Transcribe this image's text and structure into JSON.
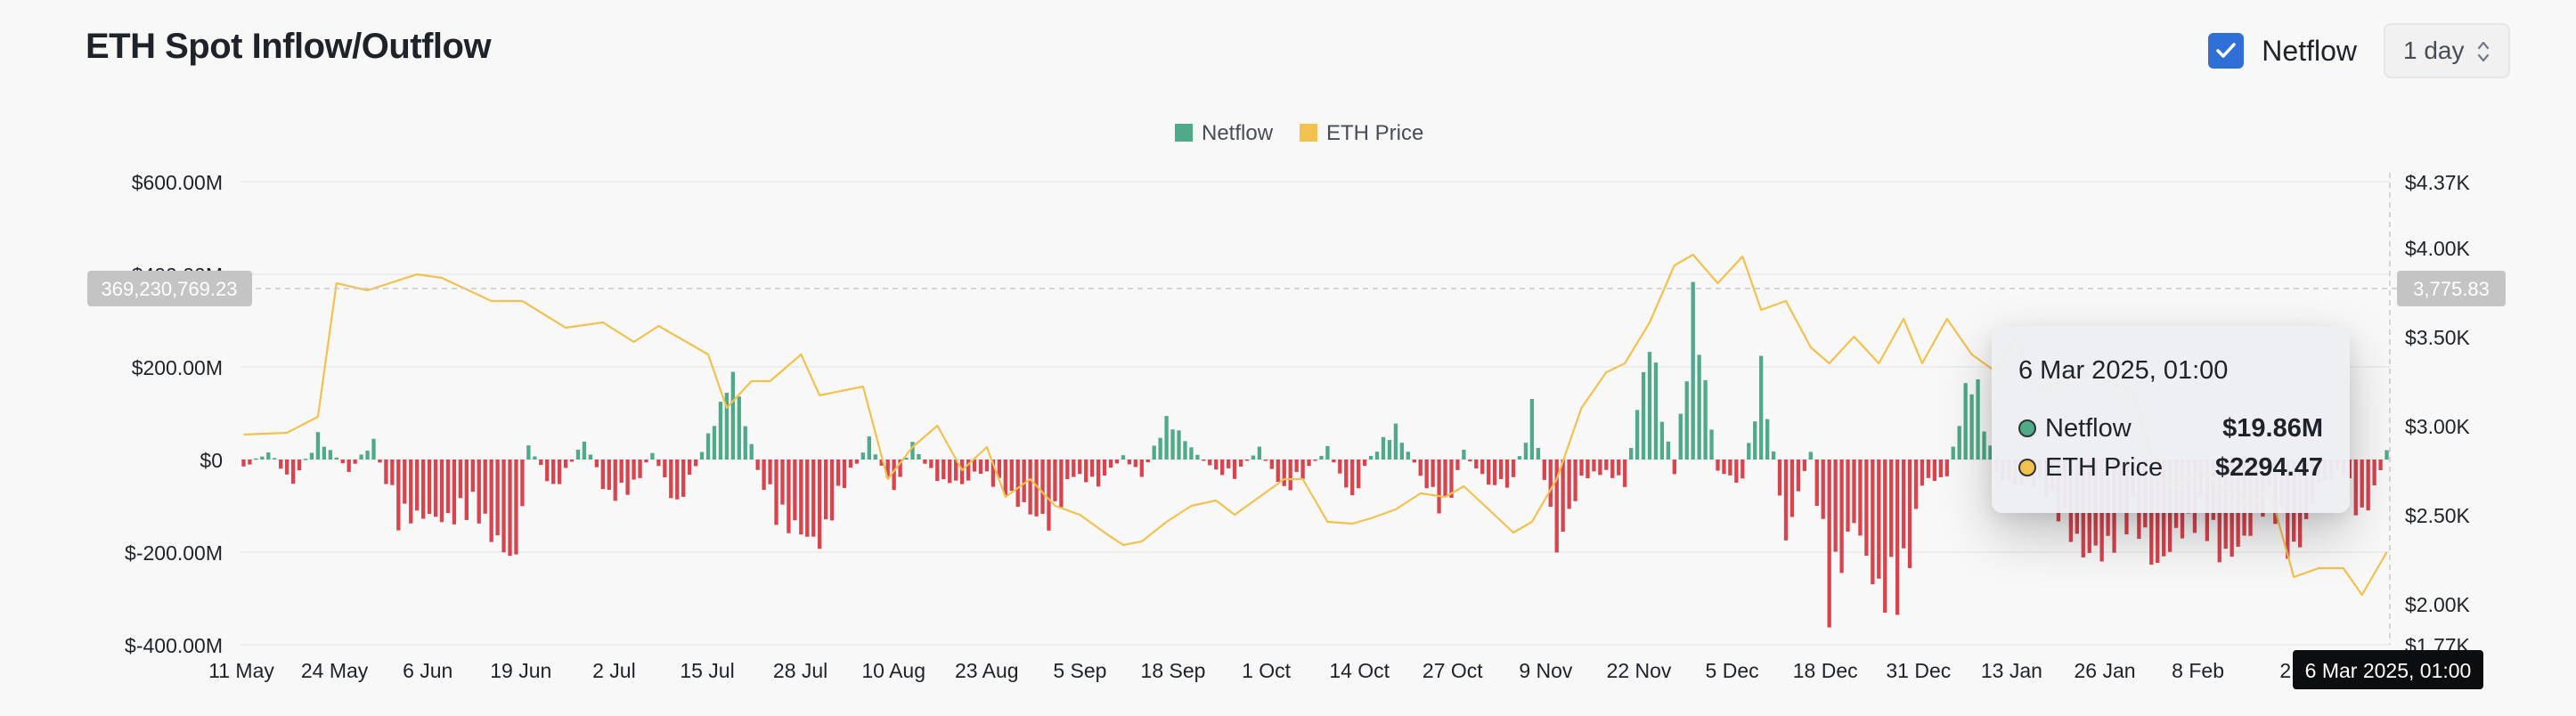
{
  "header": {
    "title": "ETH Spot Inflow/Outflow",
    "checkbox_label": "Netflow",
    "interval_value": "1 day"
  },
  "colors": {
    "positive": "#4eaa88",
    "negative": "#d9434e",
    "price": "#f2c14e",
    "checkbox": "#2f6fd8"
  },
  "crosshair": {
    "y_label": "369,230,769.23",
    "y2_label": "3,775.83",
    "x_label": "6 Mar 2025, 01:00"
  },
  "tooltip": {
    "date": "6 Mar 2025, 01:00",
    "rows": [
      {
        "name": "Netflow",
        "value": "$19.86M",
        "color": "#4eaa88"
      },
      {
        "name": "ETH Price",
        "value": "$2294.47",
        "color": "#f2c14e"
      }
    ]
  },
  "chart_data": {
    "type": "bar",
    "legend": [
      "Netflow",
      "ETH Price"
    ],
    "y_ticks": [
      "$600.00M",
      "$400.00M",
      "$200.00M",
      "$0",
      "$-200.00M",
      "$-400.00M"
    ],
    "y2_ticks": [
      "$4.37K",
      "$4.00K",
      "$3.50K",
      "$3.00K",
      "$2.50K",
      "$2.00K",
      "$1.77K"
    ],
    "x_ticks": [
      "11 May",
      "24 May",
      "6 Jun",
      "19 Jun",
      "2 Jul",
      "15 Jul",
      "28 Jul",
      "10 Aug",
      "23 Aug",
      "5 Sep",
      "18 Sep",
      "1 Oct",
      "14 Oct",
      "27 Oct",
      "9 Nov",
      "22 Nov",
      "5 Dec",
      "18 Dec",
      "31 Dec",
      "13 Jan",
      "26 Jan",
      "8 Feb",
      "21"
    ],
    "ylim": [
      -400,
      600
    ],
    "y2lim": [
      1770,
      4370
    ],
    "netflow_keyframes": [
      [
        0,
        -20
      ],
      [
        4,
        20
      ],
      [
        8,
        -60
      ],
      [
        12,
        60
      ],
      [
        17,
        -30
      ],
      [
        21,
        45
      ],
      [
        25,
        -150
      ],
      [
        29,
        -140
      ],
      [
        33,
        -150
      ],
      [
        37,
        -120
      ],
      [
        41,
        -210
      ],
      [
        44,
        -250
      ],
      [
        46,
        40
      ],
      [
        50,
        -80
      ],
      [
        52,
        -30
      ],
      [
        55,
        50
      ],
      [
        59,
        -100
      ],
      [
        63,
        -70
      ],
      [
        66,
        20
      ],
      [
        70,
        -120
      ],
      [
        74,
        20
      ],
      [
        79,
        215
      ],
      [
        83,
        -30
      ],
      [
        86,
        -140
      ],
      [
        90,
        -180
      ],
      [
        93,
        -210
      ],
      [
        97,
        -60
      ],
      [
        101,
        50
      ],
      [
        105,
        -80
      ],
      [
        108,
        40
      ],
      [
        112,
        -50
      ],
      [
        116,
        -60
      ],
      [
        119,
        -30
      ],
      [
        123,
        -80
      ],
      [
        126,
        -120
      ],
      [
        130,
        -160
      ],
      [
        134,
        -40
      ],
      [
        138,
        -60
      ],
      [
        142,
        10
      ],
      [
        145,
        -40
      ],
      [
        149,
        100
      ],
      [
        153,
        30
      ],
      [
        157,
        -30
      ],
      [
        160,
        -40
      ],
      [
        164,
        30
      ],
      [
        168,
        -80
      ],
      [
        171,
        -40
      ],
      [
        175,
        30
      ],
      [
        179,
        -100
      ],
      [
        182,
        10
      ],
      [
        186,
        80
      ],
      [
        190,
        -40
      ],
      [
        194,
        -140
      ],
      [
        197,
        20
      ],
      [
        201,
        -60
      ],
      [
        205,
        -60
      ],
      [
        208,
        130
      ],
      [
        212,
        -220
      ],
      [
        216,
        -50
      ],
      [
        220,
        -30
      ],
      [
        223,
        -60
      ],
      [
        227,
        300
      ],
      [
        231,
        -50
      ],
      [
        234,
        400
      ],
      [
        238,
        -30
      ],
      [
        242,
        -60
      ],
      [
        245,
        230
      ],
      [
        249,
        -200
      ],
      [
        253,
        30
      ],
      [
        256,
        -360
      ],
      [
        260,
        -150
      ],
      [
        264,
        -340
      ],
      [
        268,
        -330
      ],
      [
        271,
        -60
      ],
      [
        275,
        -40
      ],
      [
        279,
        240
      ],
      [
        283,
        -40
      ],
      [
        286,
        -60
      ],
      [
        290,
        -60
      ],
      [
        294,
        -160
      ],
      [
        297,
        -230
      ],
      [
        301,
        -230
      ],
      [
        305,
        -140
      ],
      [
        309,
        -270
      ],
      [
        312,
        -190
      ],
      [
        316,
        -150
      ],
      [
        320,
        -250
      ],
      [
        324,
        -180
      ],
      [
        327,
        -100
      ],
      [
        331,
        -250
      ],
      [
        335,
        -60
      ],
      [
        339,
        -30
      ],
      [
        342,
        -160
      ],
      [
        346,
        20
      ]
    ],
    "price_keyframes": [
      [
        0,
        2950
      ],
      [
        7,
        2960
      ],
      [
        12,
        3050
      ],
      [
        15,
        3800
      ],
      [
        20,
        3760
      ],
      [
        28,
        3850
      ],
      [
        32,
        3830
      ],
      [
        40,
        3700
      ],
      [
        45,
        3700
      ],
      [
        52,
        3550
      ],
      [
        58,
        3580
      ],
      [
        63,
        3470
      ],
      [
        67,
        3560
      ],
      [
        75,
        3400
      ],
      [
        78,
        3100
      ],
      [
        82,
        3250
      ],
      [
        85,
        3250
      ],
      [
        90,
        3400
      ],
      [
        93,
        3170
      ],
      [
        100,
        3220
      ],
      [
        104,
        2700
      ],
      [
        108,
        2880
      ],
      [
        112,
        3000
      ],
      [
        116,
        2750
      ],
      [
        120,
        2880
      ],
      [
        123,
        2600
      ],
      [
        127,
        2700
      ],
      [
        131,
        2550
      ],
      [
        135,
        2500
      ],
      [
        139,
        2400
      ],
      [
        142,
        2330
      ],
      [
        145,
        2350
      ],
      [
        149,
        2460
      ],
      [
        153,
        2550
      ],
      [
        157,
        2580
      ],
      [
        160,
        2500
      ],
      [
        164,
        2600
      ],
      [
        168,
        2700
      ],
      [
        171,
        2700
      ],
      [
        175,
        2460
      ],
      [
        179,
        2450
      ],
      [
        182,
        2480
      ],
      [
        186,
        2530
      ],
      [
        190,
        2620
      ],
      [
        194,
        2600
      ],
      [
        197,
        2660
      ],
      [
        201,
        2530
      ],
      [
        205,
        2400
      ],
      [
        208,
        2460
      ],
      [
        212,
        2700
      ],
      [
        216,
        3100
      ],
      [
        220,
        3300
      ],
      [
        223,
        3350
      ],
      [
        227,
        3580
      ],
      [
        231,
        3900
      ],
      [
        234,
        3960
      ],
      [
        238,
        3800
      ],
      [
        242,
        3950
      ],
      [
        245,
        3650
      ],
      [
        249,
        3700
      ],
      [
        253,
        3440
      ],
      [
        256,
        3350
      ],
      [
        260,
        3500
      ],
      [
        264,
        3350
      ],
      [
        268,
        3600
      ],
      [
        271,
        3350
      ],
      [
        275,
        3600
      ],
      [
        279,
        3400
      ],
      [
        283,
        3300
      ],
      [
        286,
        3500
      ],
      [
        290,
        3200
      ],
      [
        294,
        3250
      ],
      [
        297,
        3300
      ],
      [
        301,
        3250
      ],
      [
        305,
        3200
      ],
      [
        309,
        2700
      ],
      [
        312,
        2650
      ],
      [
        316,
        2750
      ],
      [
        320,
        2650
      ],
      [
        324,
        2550
      ],
      [
        327,
        2650
      ],
      [
        331,
        2150
      ],
      [
        335,
        2200
      ],
      [
        339,
        2200
      ],
      [
        342,
        2050
      ],
      [
        346,
        2290
      ]
    ]
  }
}
